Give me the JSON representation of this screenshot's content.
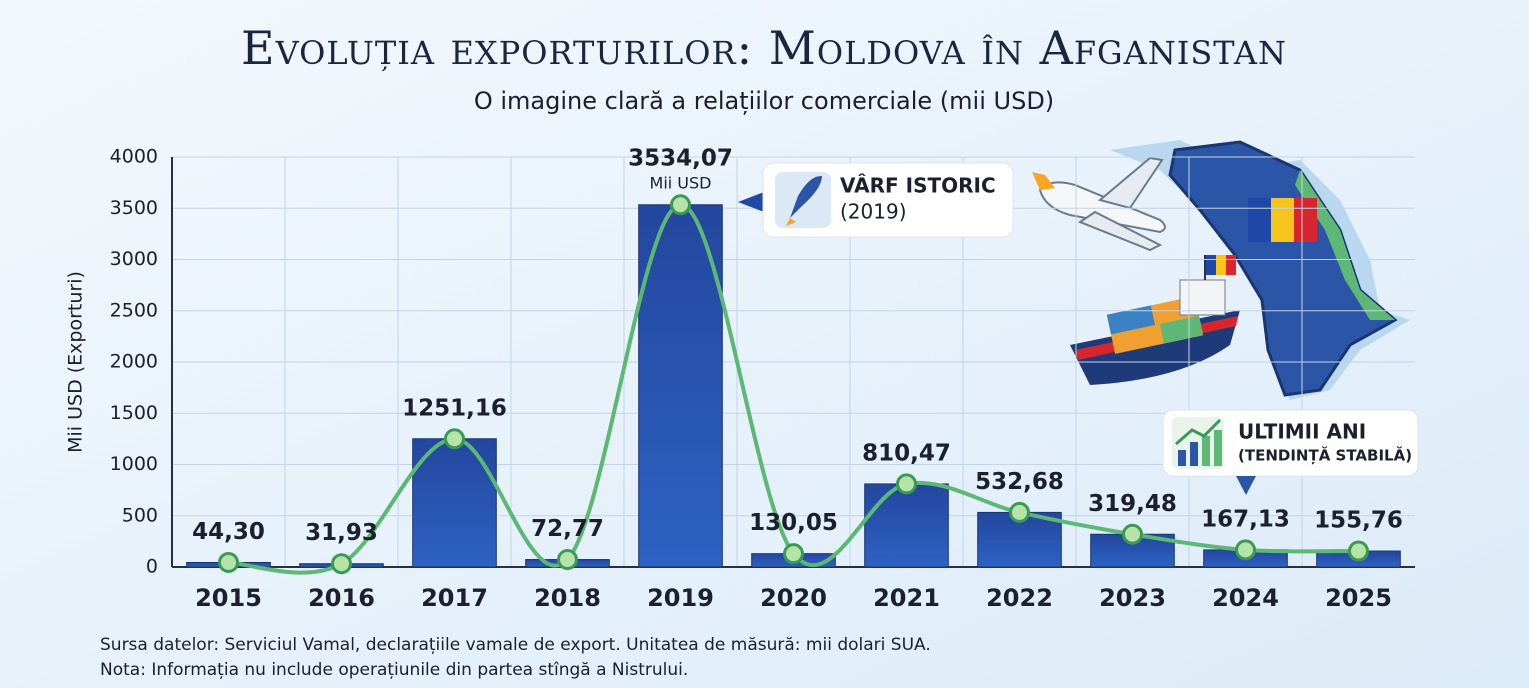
{
  "chart_data": {
    "type": "bar",
    "title": "Evoluția exporturilor: Moldova în Afganistan",
    "subtitle": "O imagine clară a relațiilor comerciale (mii USD)",
    "y_label": "Mii USD (Exporturi)",
    "categories": [
      "2015",
      "2016",
      "2017",
      "2018",
      "2019",
      "2020",
      "2021",
      "2022",
      "2023",
      "2024",
      "2025"
    ],
    "values": [
      44.3,
      31.93,
      1251.16,
      72.77,
      3534.07,
      130.05,
      810.47,
      532.68,
      319.48,
      167.13,
      155.76
    ],
    "value_labels": [
      "44,30",
      "31,93",
      "1251,16",
      "72,77",
      "3534,07",
      "130,05",
      "810,47",
      "532,68",
      "319,48",
      "167,13",
      "155,76"
    ],
    "color": "#23479e",
    "line_color": "#5cb874",
    "ylim": [
      0,
      4000
    ],
    "yticks": [
      0,
      500,
      1000,
      1500,
      2000,
      2500,
      3000,
      3500,
      4000
    ],
    "grid": true,
    "peak_annotation": "Mii USD",
    "callouts": [
      {
        "title": "VÂRF ISTORIC",
        "subtitle": "(2019)"
      },
      {
        "title": "ULTIMII ANI",
        "subtitle": "(TENDINȚĂ STABILĂ)"
      }
    ],
    "notes": [
      "Sursa datelor: Serviciul Vamal, declarațiile vamale de export. Unitatea de măsură: mii dolari SUA.",
      "Nota: Informația nu include operațiunile din partea stîngă a Nistrului."
    ]
  }
}
